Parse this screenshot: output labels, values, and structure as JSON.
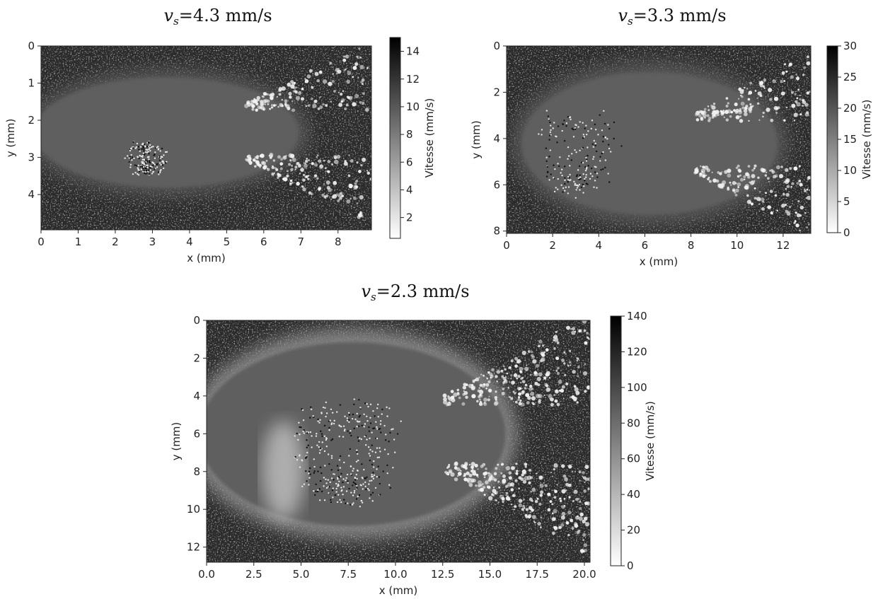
{
  "chart_data": [
    {
      "type": "heatmap",
      "title_var": "v",
      "title_sub": "s",
      "title_value": "=4.3 mm/s",
      "xlabel": "x (mm)",
      "ylabel": "y (mm)",
      "xlim": [
        0,
        8.9
      ],
      "ylim": [
        4.95,
        0
      ],
      "xticks": [
        "0",
        "1",
        "2",
        "3",
        "4",
        "5",
        "6",
        "7",
        "8"
      ],
      "yticks": [
        "0",
        "1",
        "2",
        "3",
        "4"
      ],
      "colorbar": {
        "label": "Vitesse (mm/s)",
        "range": [
          0.5,
          15
        ],
        "ticks": [
          "2",
          "4",
          "6",
          "8",
          "10",
          "12",
          "14"
        ]
      },
      "colormap": "gray_r",
      "grid": false
    },
    {
      "type": "heatmap",
      "title_var": "v",
      "title_sub": "s",
      "title_value": "=3.3 mm/s",
      "xlabel": "x (mm)",
      "ylabel": "y (mm)",
      "xlim": [
        0,
        13.2
      ],
      "ylim": [
        8.1,
        0
      ],
      "xticks": [
        "0",
        "2",
        "4",
        "6",
        "8",
        "10",
        "12"
      ],
      "yticks": [
        "0",
        "2",
        "4",
        "6",
        "8"
      ],
      "colorbar": {
        "label": "Vitesse (mm/s)",
        "range": [
          0,
          30
        ],
        "ticks": [
          "0",
          "5",
          "10",
          "15",
          "20",
          "25",
          "30"
        ]
      },
      "colormap": "gray_r",
      "grid": false
    },
    {
      "type": "heatmap",
      "title_var": "v",
      "title_sub": "s",
      "title_value": "=2.3 mm/s",
      "xlabel": "x (mm)",
      "ylabel": "y (mm)",
      "xlim": [
        0,
        20.3
      ],
      "ylim": [
        12.8,
        0
      ],
      "xticks": [
        "0.0",
        "2.5",
        "5.0",
        "7.5",
        "10.0",
        "12.5",
        "15.0",
        "17.5",
        "20.0"
      ],
      "yticks": [
        "0",
        "2",
        "4",
        "6",
        "8",
        "10",
        "12"
      ],
      "colorbar": {
        "label": "Vitesse (mm/s)",
        "range": [
          0,
          140
        ],
        "ticks": [
          "0",
          "20",
          "40",
          "60",
          "80",
          "100",
          "120",
          "140"
        ]
      },
      "colormap": "gray_r",
      "grid": false
    }
  ]
}
